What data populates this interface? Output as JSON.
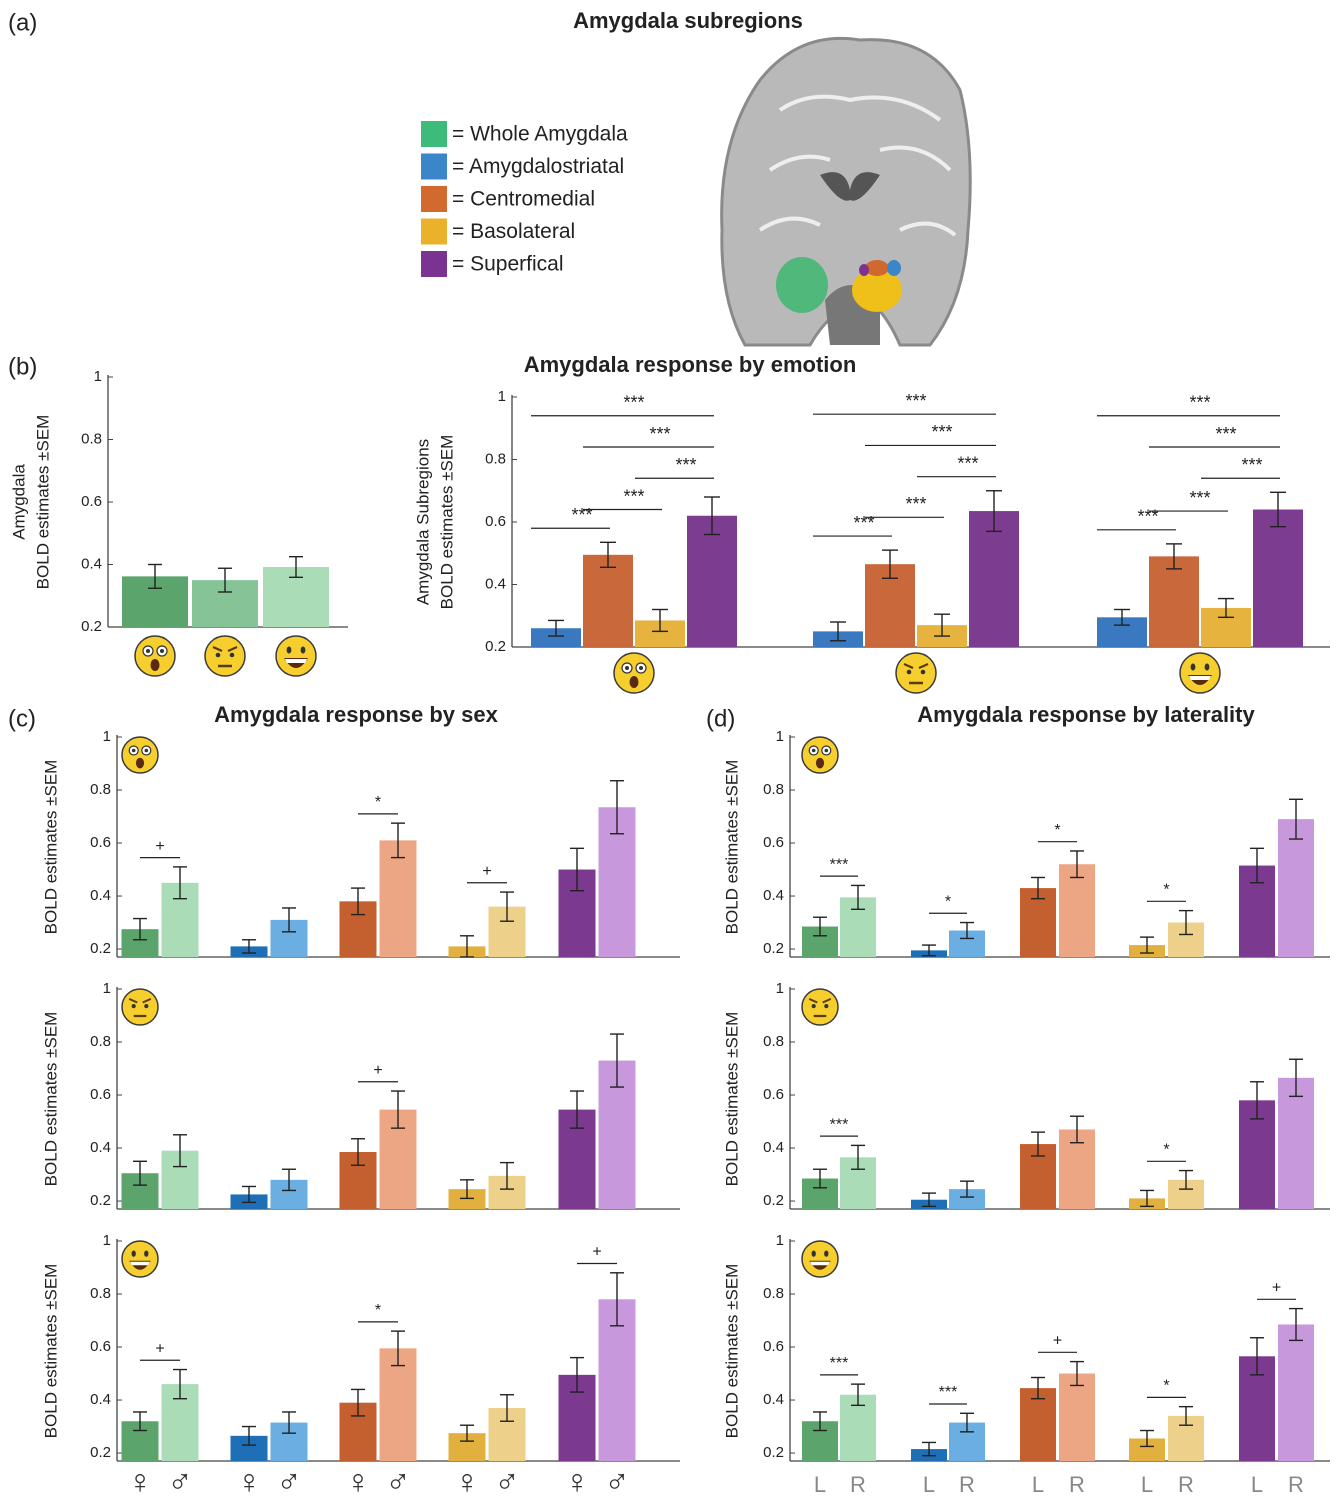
{
  "panel_labels": [
    "(a)",
    "(b)",
    "(c)",
    "(d)"
  ],
  "legend": {
    "title": "Amygdala subregions",
    "items": [
      {
        "label": "= Whole Amygdala",
        "color": "#3dbb7a"
      },
      {
        "label": "= Amygdalostriatal",
        "color": "#3a86c8"
      },
      {
        "label": "= Centromedial",
        "color": "#d2692f"
      },
      {
        "label": "= Basolateral",
        "color": "#e9b22a"
      },
      {
        "label": "= Superfical",
        "color": "#7a3390"
      }
    ]
  },
  "chart_data": [
    {
      "type": "bar",
      "ylabel": [
        "Amygdala",
        "BOLD estimates ±SEM"
      ],
      "ylim": [
        0.2,
        1
      ],
      "yticks": [
        0.2,
        0.4,
        0.6,
        0.8,
        1
      ],
      "values": [
        0.362,
        0.35,
        0.392
      ],
      "errors": [
        0.038,
        0.038,
        0.033
      ],
      "colors": [
        "#5ba56c",
        "#86c497",
        "#a9dcb7"
      ]
    },
    {
      "type": "grouped_bar",
      "title": "Amygdala response by emotion",
      "ylabel": [
        "Amygdala Subregions",
        "BOLD estimates ±SEM"
      ],
      "ylim": [
        0.2,
        1
      ],
      "yticks": [
        0.2,
        0.4,
        0.6,
        0.8,
        1
      ],
      "series": [
        {
          "color": "#3a78c0",
          "values": [
            0.26,
            0.25,
            0.295
          ],
          "errors": [
            0.025,
            0.03,
            0.025
          ]
        },
        {
          "color": "#c9683a",
          "values": [
            0.495,
            0.465,
            0.49
          ],
          "errors": [
            0.04,
            0.045,
            0.04
          ]
        },
        {
          "color": "#e6b33e",
          "values": [
            0.285,
            0.27,
            0.325
          ],
          "errors": [
            0.035,
            0.035,
            0.03
          ]
        },
        {
          "color": "#7c3d90",
          "values": [
            0.62,
            0.635,
            0.64
          ],
          "errors": [
            0.06,
            0.065,
            0.055
          ]
        }
      ],
      "significance": [
        [
          "***",
          "***",
          "***",
          "***",
          "***"
        ],
        [
          "***",
          "***",
          "***",
          "***",
          "***"
        ],
        [
          "***",
          "***",
          "***",
          "***",
          "***"
        ]
      ]
    },
    {
      "type": "bar",
      "title": "Amygdala response by sex",
      "ylabel": [
        "BOLD estimates ±SEM"
      ],
      "ylim": [
        0.17,
        1
      ],
      "yticks": [
        0.2,
        0.4,
        0.6,
        0.8,
        1
      ],
      "values": [
        0.275,
        0.45,
        0.21,
        0.31,
        0.38,
        0.61,
        0.21,
        0.36,
        0.5,
        0.735
      ],
      "errors": [
        0.04,
        0.06,
        0.025,
        0.045,
        0.05,
        0.065,
        0.04,
        0.055,
        0.08,
        0.1
      ],
      "colors": [
        "#5ba56c",
        "#a9dcb7",
        "#1f6fb7",
        "#6aaee2",
        "#c4602f",
        "#eda683",
        "#e2b03f",
        "#edd08a",
        "#7b3a90",
        "#c898dc"
      ],
      "significance": [
        "+",
        null,
        "*",
        "+",
        null
      ]
    },
    {
      "type": "bar",
      "ylabel": [
        "BOLD estimates ±SEM"
      ],
      "ylim": [
        0.17,
        1
      ],
      "yticks": [
        0.2,
        0.4,
        0.6,
        0.8,
        1
      ],
      "values": [
        0.305,
        0.39,
        0.225,
        0.28,
        0.385,
        0.545,
        0.245,
        0.295,
        0.545,
        0.73
      ],
      "errors": [
        0.045,
        0.06,
        0.03,
        0.04,
        0.05,
        0.07,
        0.035,
        0.05,
        0.07,
        0.1
      ],
      "colors": [
        "#5ba56c",
        "#a9dcb7",
        "#1f6fb7",
        "#6aaee2",
        "#c4602f",
        "#eda683",
        "#e2b03f",
        "#edd08a",
        "#7b3a90",
        "#c898dc"
      ],
      "significance": [
        null,
        null,
        "+",
        null,
        null
      ]
    },
    {
      "type": "bar",
      "ylabel": [
        "BOLD estimates ±SEM"
      ],
      "ylim": [
        0.17,
        1
      ],
      "yticks": [
        0.2,
        0.4,
        0.6,
        0.8,
        1
      ],
      "values": [
        0.32,
        0.46,
        0.265,
        0.315,
        0.39,
        0.595,
        0.275,
        0.37,
        0.495,
        0.78
      ],
      "errors": [
        0.035,
        0.055,
        0.035,
        0.04,
        0.05,
        0.065,
        0.03,
        0.05,
        0.065,
        0.1
      ],
      "colors": [
        "#5ba56c",
        "#a9dcb7",
        "#1f6fb7",
        "#6aaee2",
        "#c4602f",
        "#eda683",
        "#e2b03f",
        "#edd08a",
        "#7b3a90",
        "#c898dc"
      ],
      "significance": [
        "+",
        null,
        "*",
        null,
        "+"
      ],
      "categories": [
        "♀",
        "♂",
        "♀",
        "♂",
        "♀",
        "♂",
        "♀",
        "♂",
        "♀",
        "♂"
      ]
    },
    {
      "type": "bar",
      "title": "Amygdala response by laterality",
      "ylabel": [
        "BOLD estimates ±SEM"
      ],
      "ylim": [
        0.17,
        1
      ],
      "yticks": [
        0.2,
        0.4,
        0.6,
        0.8,
        1
      ],
      "values": [
        0.285,
        0.395,
        0.195,
        0.27,
        0.43,
        0.52,
        0.215,
        0.3,
        0.515,
        0.69
      ],
      "errors": [
        0.035,
        0.045,
        0.02,
        0.03,
        0.04,
        0.05,
        0.03,
        0.045,
        0.065,
        0.075
      ],
      "colors": [
        "#5ba56c",
        "#a9dcb7",
        "#1f6fb7",
        "#6aaee2",
        "#c4602f",
        "#eda683",
        "#e2b03f",
        "#edd08a",
        "#7b3a90",
        "#c898dc"
      ],
      "significance": [
        "***",
        "*",
        "*",
        "*",
        null
      ]
    },
    {
      "type": "bar",
      "ylabel": [
        "BOLD estimates ±SEM"
      ],
      "ylim": [
        0.17,
        1
      ],
      "yticks": [
        0.2,
        0.4,
        0.6,
        0.8,
        1
      ],
      "values": [
        0.285,
        0.365,
        0.205,
        0.245,
        0.415,
        0.47,
        0.21,
        0.28,
        0.58,
        0.665
      ],
      "errors": [
        0.035,
        0.045,
        0.025,
        0.03,
        0.045,
        0.05,
        0.03,
        0.035,
        0.07,
        0.07
      ],
      "colors": [
        "#5ba56c",
        "#a9dcb7",
        "#1f6fb7",
        "#6aaee2",
        "#c4602f",
        "#eda683",
        "#e2b03f",
        "#edd08a",
        "#7b3a90",
        "#c898dc"
      ],
      "significance": [
        "***",
        null,
        null,
        "*",
        null
      ]
    },
    {
      "type": "bar",
      "ylabel": [
        "BOLD estimates ±SEM"
      ],
      "ylim": [
        0.17,
        1
      ],
      "yticks": [
        0.2,
        0.4,
        0.6,
        0.8,
        1
      ],
      "values": [
        0.32,
        0.42,
        0.215,
        0.315,
        0.445,
        0.5,
        0.255,
        0.34,
        0.565,
        0.685
      ],
      "errors": [
        0.035,
        0.04,
        0.025,
        0.035,
        0.04,
        0.045,
        0.03,
        0.035,
        0.07,
        0.06
      ],
      "colors": [
        "#5ba56c",
        "#a9dcb7",
        "#1f6fb7",
        "#6aaee2",
        "#c4602f",
        "#eda683",
        "#e2b03f",
        "#edd08a",
        "#7b3a90",
        "#c898dc"
      ],
      "significance": [
        "***",
        "***",
        "+",
        "*",
        "+"
      ],
      "categories": [
        "L",
        "R",
        "L",
        "R",
        "L",
        "R",
        "L",
        "R",
        "L",
        "R"
      ]
    }
  ]
}
